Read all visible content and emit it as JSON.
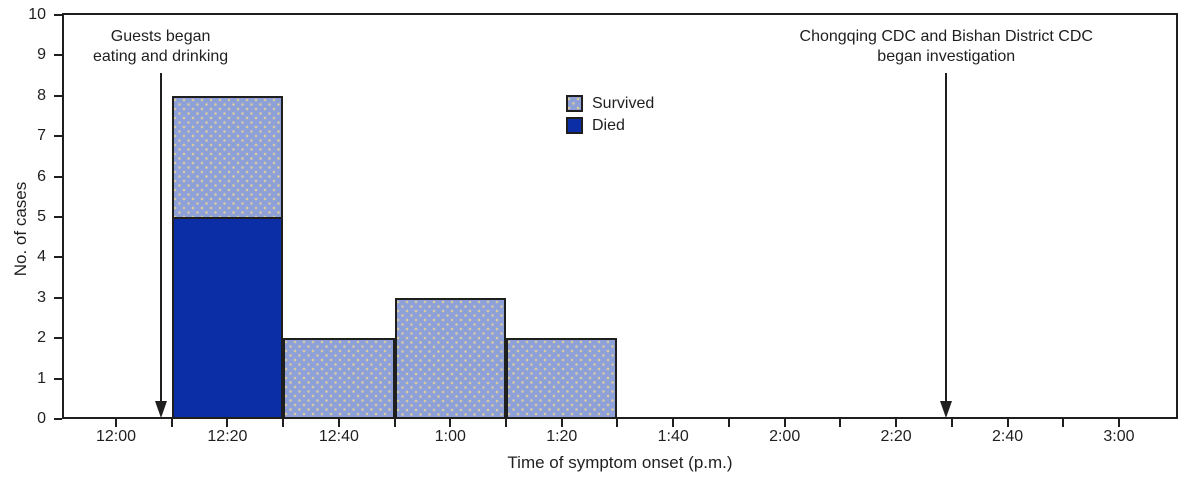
{
  "chart_data": {
    "type": "bar",
    "subtype": "stacked-histogram-epidemic-curve",
    "title": "",
    "xlabel": "Time of symptom onset (p.m.)",
    "ylabel": "No. of cases",
    "ylim": [
      0,
      10
    ],
    "yticks": [
      0,
      1,
      2,
      3,
      4,
      5,
      6,
      7,
      8,
      9,
      10
    ],
    "grid": false,
    "x_axis": {
      "unit": "minutes after 12:00 p.m.",
      "range_min": [
        0,
        180
      ],
      "tick_interval_min": 10,
      "labels": [
        {
          "min": 0,
          "text": "12:00"
        },
        {
          "min": 20,
          "text": "12:20"
        },
        {
          "min": 40,
          "text": "12:40"
        },
        {
          "min": 60,
          "text": "1:00"
        },
        {
          "min": 80,
          "text": "1:20"
        },
        {
          "min": 100,
          "text": "1:40"
        },
        {
          "min": 120,
          "text": "2:00"
        },
        {
          "min": 140,
          "text": "2:20"
        },
        {
          "min": 160,
          "text": "2:40"
        },
        {
          "min": 180,
          "text": "3:00"
        }
      ]
    },
    "categories": [
      "12:10-12:30",
      "12:30-12:50",
      "12:50-1:10",
      "1:10-1:30"
    ],
    "series": [
      {
        "name": "Survived",
        "values": [
          3,
          2,
          3,
          2
        ]
      },
      {
        "name": "Died",
        "values": [
          5,
          0,
          0,
          0
        ]
      }
    ],
    "bars": [
      {
        "start": "12:10",
        "end": "12:30",
        "start_min": 10,
        "end_min": 30,
        "survived": 3,
        "died": 5
      },
      {
        "start": "12:30",
        "end": "12:50",
        "start_min": 30,
        "end_min": 50,
        "survived": 2,
        "died": 0
      },
      {
        "start": "12:50",
        "end": "1:10",
        "start_min": 50,
        "end_min": 70,
        "survived": 3,
        "died": 0
      },
      {
        "start": "1:10",
        "end": "1:30",
        "start_min": 70,
        "end_min": 90,
        "survived": 2,
        "died": 0
      }
    ],
    "legend": {
      "position": "inside-top-center",
      "items": [
        {
          "key": "survived",
          "label": "Survived"
        },
        {
          "key": "died",
          "label": "Died"
        }
      ]
    },
    "annotations": [
      {
        "lines": [
          "Guests began",
          "eating and drinking"
        ],
        "time_min": 8
      },
      {
        "lines": [
          "Chongqing CDC and Bishan District CDC",
          "began investigation"
        ],
        "time_min": 149
      }
    ],
    "colors": {
      "survived": "#8da1d8",
      "survived_dot": "#d9c9a0",
      "died": "#0b2da6",
      "axis": "#1f1f1f",
      "background": "#ffffff"
    }
  }
}
